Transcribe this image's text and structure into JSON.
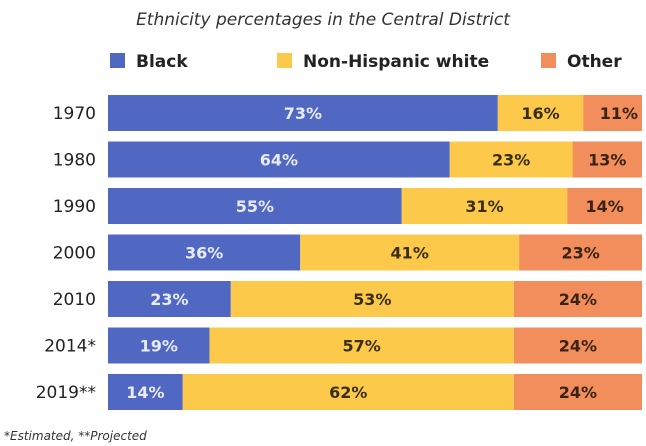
{
  "chart_data": {
    "type": "bar",
    "orientation": "horizontal",
    "stacked": true,
    "title": "Ethnicity percentages in the Central District",
    "categories": [
      "1970",
      "1980",
      "1990",
      "2000",
      "2010",
      "2014*",
      "2019**"
    ],
    "series": [
      {
        "name": "Black",
        "color": "#5168c3",
        "label_color": "#e7ebf8",
        "values": [
          73,
          64,
          55,
          36,
          23,
          19,
          14
        ]
      },
      {
        "name": "Non-Hispanic white",
        "color": "#fcc94b",
        "label_color": "#3a2e10",
        "values": [
          16,
          23,
          31,
          41,
          53,
          57,
          62
        ]
      },
      {
        "name": "Other",
        "color": "#f28e5c",
        "label_color": "#3a2214",
        "values": [
          11,
          13,
          14,
          23,
          24,
          24,
          24
        ]
      }
    ],
    "value_suffix": "%",
    "xlim": [
      0,
      100
    ],
    "legend_position": "top",
    "grid": false,
    "footnote": "*Estimated, **Projected"
  }
}
